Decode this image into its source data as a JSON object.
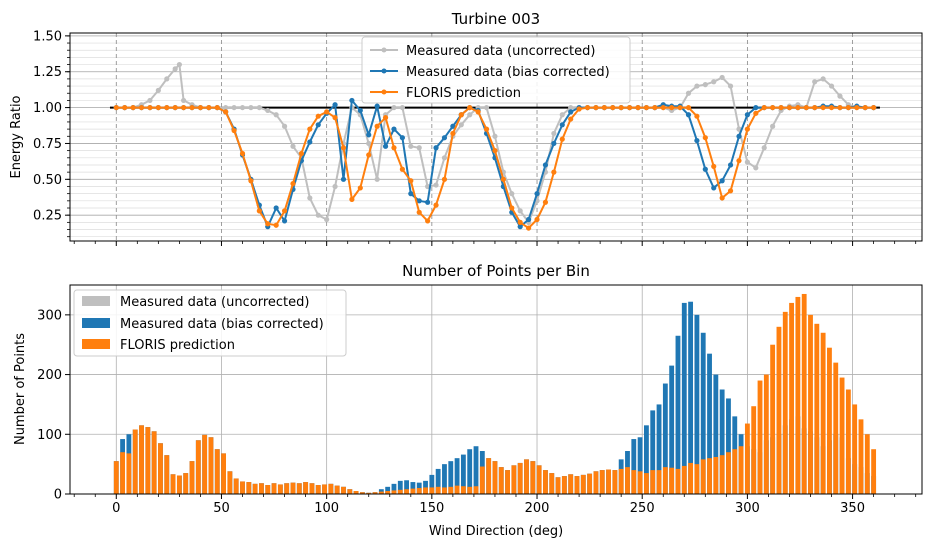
{
  "chart_data": [
    {
      "type": "line",
      "title": "Turbine 003",
      "xlabel": "",
      "ylabel": "Energy Ratio",
      "xlim": [
        -22,
        383
      ],
      "ylim": [
        0.07,
        1.52
      ],
      "yticks": [
        "0.25",
        "0.50",
        "0.75",
        "1.00",
        "1.25",
        "1.50"
      ],
      "ytick_values": [
        0.25,
        0.5,
        0.75,
        1.0,
        1.25,
        1.5
      ],
      "grid": true,
      "legend_position": "top-center",
      "reference_line": {
        "x": [
          -3,
          363
        ],
        "y": 1.0,
        "color": "#000000"
      },
      "series": [
        {
          "name": "Measured data (uncorrected)",
          "color": "#bfbfbf",
          "x": [
            0,
            4,
            8,
            12,
            16,
            20,
            24,
            28,
            30,
            32,
            36,
            40,
            44,
            48,
            52,
            56,
            60,
            64,
            68,
            72,
            76,
            80,
            84,
            88,
            92,
            96,
            100,
            104,
            108,
            112,
            116,
            120,
            124,
            128,
            132,
            136,
            140,
            144,
            148,
            152,
            156,
            160,
            164,
            168,
            172,
            176,
            180,
            184,
            188,
            192,
            196,
            200,
            204,
            208,
            212,
            216,
            220,
            224,
            228,
            232,
            236,
            240,
            244,
            248,
            252,
            256,
            260,
            264,
            268,
            272,
            276,
            280,
            284,
            288,
            292,
            296,
            300,
            304,
            308,
            312,
            316,
            320,
            324,
            328,
            332,
            336,
            340,
            344,
            348,
            352,
            356,
            360
          ],
          "y": [
            1.0,
            1.0,
            1.0,
            1.02,
            1.05,
            1.12,
            1.2,
            1.27,
            1.3,
            1.05,
            1.02,
            1.0,
            1.0,
            1.0,
            1.0,
            1.0,
            1.0,
            1.0,
            1.0,
            0.98,
            0.95,
            0.87,
            0.73,
            0.65,
            0.37,
            0.25,
            0.22,
            0.45,
            0.75,
            1.0,
            0.95,
            0.75,
            0.5,
            0.95,
            1.0,
            1.0,
            0.73,
            0.72,
            0.45,
            0.46,
            0.65,
            0.8,
            0.88,
            0.95,
            1.0,
            1.0,
            0.8,
            0.55,
            0.4,
            0.28,
            0.2,
            0.35,
            0.55,
            0.82,
            0.95,
            1.0,
            1.0,
            1.0,
            1.0,
            1.0,
            1.0,
            1.0,
            1.0,
            1.0,
            1.0,
            1.0,
            1.0,
            0.98,
            1.0,
            1.1,
            1.15,
            1.16,
            1.18,
            1.21,
            1.15,
            0.85,
            0.62,
            0.58,
            0.72,
            0.87,
            0.98,
            1.01,
            1.02,
            1.0,
            1.18,
            1.2,
            1.15,
            1.08,
            1.02,
            1.0,
            1.0,
            1.0
          ]
        },
        {
          "name": "Measured data (bias corrected)",
          "color": "#1f77b4",
          "x": [
            0,
            4,
            8,
            12,
            16,
            20,
            24,
            28,
            32,
            36,
            40,
            44,
            48,
            52,
            56,
            60,
            64,
            68,
            72,
            76,
            80,
            84,
            88,
            92,
            96,
            100,
            104,
            108,
            112,
            116,
            120,
            124,
            128,
            132,
            136,
            140,
            144,
            148,
            152,
            156,
            160,
            164,
            168,
            172,
            176,
            180,
            184,
            188,
            192,
            196,
            200,
            204,
            208,
            212,
            216,
            220,
            224,
            228,
            232,
            236,
            240,
            244,
            248,
            252,
            256,
            260,
            264,
            268,
            272,
            276,
            280,
            284,
            288,
            292,
            296,
            300,
            304,
            308,
            312,
            316,
            320,
            324,
            328,
            332,
            336,
            340,
            344,
            348,
            352,
            356,
            360
          ],
          "y": [
            1.0,
            1.0,
            1.0,
            1.0,
            1.0,
            1.0,
            1.0,
            1.0,
            1.0,
            1.0,
            1.0,
            1.0,
            1.0,
            0.97,
            0.85,
            0.67,
            0.5,
            0.32,
            0.17,
            0.3,
            0.21,
            0.43,
            0.63,
            0.76,
            0.88,
            0.96,
            1.02,
            0.5,
            1.05,
            0.98,
            0.81,
            1.01,
            0.73,
            0.85,
            0.79,
            0.4,
            0.35,
            0.34,
            0.72,
            0.79,
            0.87,
            0.95,
            1.0,
            0.98,
            0.82,
            0.65,
            0.45,
            0.27,
            0.17,
            0.22,
            0.4,
            0.6,
            0.75,
            0.88,
            0.97,
            1.0,
            1.0,
            1.0,
            1.0,
            1.0,
            1.0,
            1.0,
            1.0,
            1.0,
            1.0,
            1.02,
            1.01,
            1.01,
            0.95,
            0.77,
            0.57,
            0.44,
            0.49,
            0.6,
            0.8,
            0.95,
            1.0,
            1.0,
            1.0,
            1.0,
            1.0,
            1.0,
            1.0,
            1.0,
            1.01,
            1.01,
            1.0,
            1.0,
            1.01,
            1.0,
            1.0
          ]
        },
        {
          "name": "FLORIS prediction",
          "color": "#ff7f0e",
          "x": [
            0,
            4,
            8,
            12,
            16,
            20,
            24,
            28,
            32,
            36,
            40,
            44,
            48,
            52,
            56,
            60,
            64,
            68,
            72,
            76,
            80,
            84,
            88,
            92,
            96,
            100,
            104,
            108,
            112,
            116,
            120,
            124,
            128,
            132,
            136,
            140,
            144,
            148,
            152,
            156,
            160,
            164,
            168,
            172,
            176,
            180,
            184,
            188,
            192,
            196,
            200,
            204,
            208,
            212,
            216,
            220,
            224,
            228,
            232,
            236,
            240,
            244,
            248,
            252,
            256,
            260,
            264,
            268,
            272,
            276,
            280,
            284,
            288,
            292,
            296,
            300,
            304,
            308,
            312,
            316,
            320,
            324,
            328,
            332,
            336,
            340,
            344,
            348,
            352,
            356,
            360
          ],
          "y": [
            1.0,
            1.0,
            1.0,
            1.0,
            1.0,
            1.0,
            1.0,
            1.0,
            1.0,
            1.0,
            1.0,
            1.0,
            1.0,
            0.97,
            0.84,
            0.68,
            0.49,
            0.28,
            0.19,
            0.18,
            0.28,
            0.47,
            0.68,
            0.85,
            0.94,
            0.97,
            0.93,
            0.72,
            0.36,
            0.44,
            0.67,
            0.87,
            0.93,
            0.72,
            0.57,
            0.49,
            0.27,
            0.21,
            0.32,
            0.5,
            0.82,
            0.95,
            1.0,
            0.97,
            0.85,
            0.7,
            0.5,
            0.3,
            0.2,
            0.16,
            0.22,
            0.34,
            0.55,
            0.78,
            0.92,
            0.99,
            1.0,
            1.0,
            1.0,
            1.0,
            1.0,
            1.0,
            1.0,
            1.0,
            1.0,
            1.0,
            1.0,
            1.0,
            1.0,
            0.94,
            0.79,
            0.59,
            0.37,
            0.42,
            0.63,
            0.85,
            0.96,
            1.0,
            1.0,
            1.0,
            1.0,
            1.0,
            1.0,
            1.0,
            1.0,
            1.0,
            1.0,
            1.0,
            1.0,
            1.0,
            1.0
          ]
        }
      ]
    },
    {
      "type": "bar",
      "title": "Number of Points per Bin",
      "xlabel": "Wind Direction (deg)",
      "ylabel": "Number of Points",
      "xlim": [
        -22,
        383
      ],
      "ylim": [
        0,
        350
      ],
      "xticks": [
        "0",
        "50",
        "100",
        "150",
        "200",
        "250",
        "300",
        "350"
      ],
      "xtick_values": [
        0,
        50,
        100,
        150,
        200,
        250,
        300,
        350
      ],
      "yticks": [
        "0",
        "100",
        "200",
        "300"
      ],
      "ytick_values": [
        0,
        100,
        200,
        300
      ],
      "grid": true,
      "legend_position": "top-left",
      "bar_width": 2.3,
      "series": [
        {
          "name": "Measured data (uncorrected)",
          "color": "#bfbfbf",
          "x": [],
          "values": []
        },
        {
          "name": "Measured data (bias corrected)",
          "color": "#1f77b4",
          "x": [
            0,
            3,
            6,
            9,
            12,
            15,
            18,
            21,
            24,
            27,
            30,
            33,
            36,
            39,
            42,
            45,
            48,
            51,
            54,
            57,
            60,
            63,
            66,
            69,
            72,
            75,
            78,
            81,
            84,
            87,
            90,
            93,
            96,
            99,
            102,
            105,
            108,
            111,
            114,
            117,
            120,
            123,
            126,
            129,
            132,
            135,
            138,
            141,
            144,
            147,
            150,
            153,
            156,
            159,
            162,
            165,
            168,
            171,
            174,
            177,
            180,
            183,
            186,
            189,
            192,
            195,
            198,
            201,
            204,
            207,
            210,
            213,
            216,
            219,
            222,
            225,
            228,
            231,
            234,
            237,
            240,
            243,
            246,
            249,
            252,
            255,
            258,
            261,
            264,
            267,
            270,
            273,
            276,
            279,
            282,
            285,
            288,
            291,
            294,
            297,
            300,
            303,
            306,
            309,
            312,
            315,
            318,
            321,
            324,
            327,
            330,
            333,
            336,
            339,
            342,
            345,
            348,
            351,
            354,
            357,
            360
          ],
          "values": [
            55,
            92,
            100,
            108,
            115,
            112,
            105,
            85,
            65,
            33,
            31,
            35,
            55,
            90,
            99,
            95,
            75,
            68,
            38,
            26,
            21,
            20,
            17,
            18,
            15,
            18,
            16,
            18,
            19,
            18,
            20,
            18,
            15,
            16,
            17,
            14,
            12,
            8,
            5,
            3,
            2,
            3,
            8,
            12,
            17,
            22,
            23,
            20,
            19,
            22,
            32,
            42,
            50,
            55,
            60,
            66,
            75,
            80,
            72,
            60,
            55,
            45,
            40,
            48,
            52,
            58,
            55,
            48,
            40,
            35,
            28,
            30,
            33,
            30,
            32,
            34,
            38,
            40,
            41,
            40,
            58,
            72,
            92,
            95,
            115,
            140,
            150,
            185,
            215,
            265,
            320,
            322,
            300,
            270,
            235,
            200,
            175,
            160,
            130,
            100,
            80,
            75,
            70,
            90,
            95,
            100,
            115,
            125,
            130,
            110,
            105,
            95,
            80,
            90,
            100,
            95,
            60,
            50,
            45,
            35,
            30
          ]
        },
        {
          "name": "FLORIS prediction",
          "color": "#ff7f0e",
          "x": [
            0,
            3,
            6,
            9,
            12,
            15,
            18,
            21,
            24,
            27,
            30,
            33,
            36,
            39,
            42,
            45,
            48,
            51,
            54,
            57,
            60,
            63,
            66,
            69,
            72,
            75,
            78,
            81,
            84,
            87,
            90,
            93,
            96,
            99,
            102,
            105,
            108,
            111,
            114,
            117,
            120,
            123,
            126,
            129,
            132,
            135,
            138,
            141,
            144,
            147,
            150,
            153,
            156,
            159,
            162,
            165,
            168,
            171,
            174,
            177,
            180,
            183,
            186,
            189,
            192,
            195,
            198,
            201,
            204,
            207,
            210,
            213,
            216,
            219,
            222,
            225,
            228,
            231,
            234,
            237,
            240,
            243,
            246,
            249,
            252,
            255,
            258,
            261,
            264,
            267,
            270,
            273,
            276,
            279,
            282,
            285,
            288,
            291,
            294,
            297,
            300,
            303,
            306,
            309,
            312,
            315,
            318,
            321,
            324,
            327,
            330,
            333,
            336,
            339,
            342,
            345,
            348,
            351,
            354,
            357,
            360
          ],
          "values": [
            55,
            70,
            68,
            108,
            115,
            112,
            105,
            85,
            65,
            33,
            31,
            35,
            55,
            90,
            99,
            95,
            75,
            68,
            38,
            26,
            21,
            20,
            17,
            18,
            15,
            18,
            16,
            18,
            19,
            18,
            20,
            18,
            15,
            16,
            17,
            14,
            12,
            8,
            5,
            3,
            2,
            3,
            4,
            5,
            6,
            7,
            8,
            9,
            10,
            11,
            11,
            12,
            11,
            12,
            14,
            13,
            12,
            13,
            46,
            60,
            55,
            45,
            40,
            48,
            52,
            58,
            55,
            48,
            40,
            35,
            28,
            30,
            33,
            30,
            32,
            34,
            38,
            40,
            41,
            40,
            42,
            45,
            40,
            38,
            35,
            40,
            40,
            45,
            44,
            42,
            47,
            52,
            50,
            58,
            60,
            62,
            65,
            70,
            75,
            80,
            118,
            147,
            190,
            200,
            250,
            280,
            305,
            320,
            330,
            335,
            300,
            285,
            270,
            245,
            220,
            195,
            175,
            150,
            125,
            100,
            75
          ]
        }
      ]
    }
  ]
}
